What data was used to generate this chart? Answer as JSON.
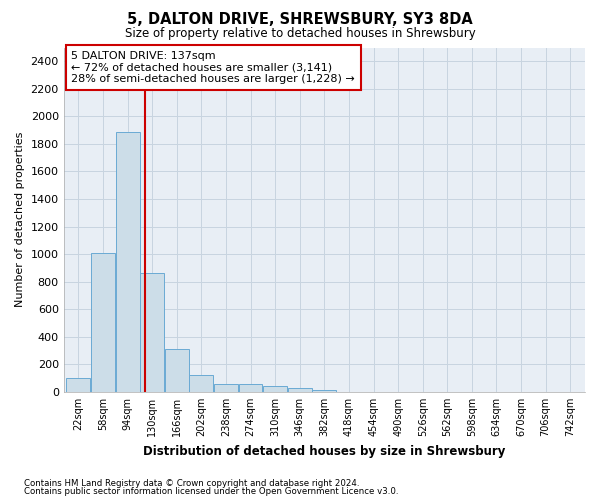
{
  "title": "5, DALTON DRIVE, SHREWSBURY, SY3 8DA",
  "subtitle": "Size of property relative to detached houses in Shrewsbury",
  "xlabel": "Distribution of detached houses by size in Shrewsbury",
  "ylabel": "Number of detached properties",
  "footnote1": "Contains HM Land Registry data © Crown copyright and database right 2024.",
  "footnote2": "Contains public sector information licensed under the Open Government Licence v3.0.",
  "bin_labels": [
    "22sqm",
    "58sqm",
    "94sqm",
    "130sqm",
    "166sqm",
    "202sqm",
    "238sqm",
    "274sqm",
    "310sqm",
    "346sqm",
    "382sqm",
    "418sqm",
    "454sqm",
    "490sqm",
    "526sqm",
    "562sqm",
    "598sqm",
    "634sqm",
    "670sqm",
    "706sqm",
    "742sqm"
  ],
  "bin_starts": [
    22,
    58,
    94,
    130,
    166,
    202,
    238,
    274,
    310,
    346,
    382,
    418,
    454,
    490,
    526,
    562,
    598,
    634,
    670,
    706,
    742
  ],
  "bar_values": [
    100,
    1010,
    1890,
    860,
    315,
    120,
    60,
    55,
    40,
    25,
    15,
    0,
    0,
    0,
    0,
    0,
    0,
    0,
    0,
    0,
    0
  ],
  "bar_color": "#ccdde8",
  "bar_edge_color": "#6aaad4",
  "grid_color": "#c8d4e0",
  "background_color": "#e8eef5",
  "property_size": 137,
  "property_line_color": "#cc0000",
  "annotation_text1": "5 DALTON DRIVE: 137sqm",
  "annotation_text2": "← 72% of detached houses are smaller (3,141)",
  "annotation_text3": "28% of semi-detached houses are larger (1,228) →",
  "annotation_box_facecolor": "#ffffff",
  "annotation_box_edgecolor": "#cc0000",
  "ylim": [
    0,
    2500
  ],
  "yticks": [
    0,
    200,
    400,
    600,
    800,
    1000,
    1200,
    1400,
    1600,
    1800,
    2000,
    2200,
    2400
  ],
  "bin_width": 36
}
